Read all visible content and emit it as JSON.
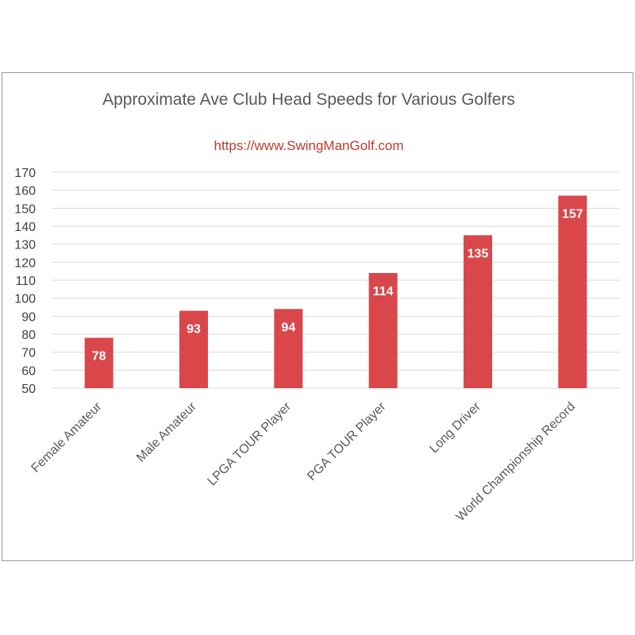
{
  "chart_data": {
    "type": "bar",
    "title": "Approximate Ave Club Head Speeds for Various Golfers",
    "subtitle": "https://www.SwingManGolf.com",
    "categories": [
      "Female Amateur",
      "Male Amateur",
      "LPGA TOUR Player",
      "PGA TOUR Player",
      "Long Driver",
      "World Championship Record"
    ],
    "values": [
      78,
      93,
      94,
      114,
      135,
      157
    ],
    "ylim": [
      50,
      170
    ],
    "yticks": [
      50,
      60,
      70,
      80,
      90,
      100,
      110,
      120,
      130,
      140,
      150,
      160,
      170
    ],
    "grid": true,
    "legend": "none",
    "bar_color": "#d9474b",
    "data_labels": true
  }
}
